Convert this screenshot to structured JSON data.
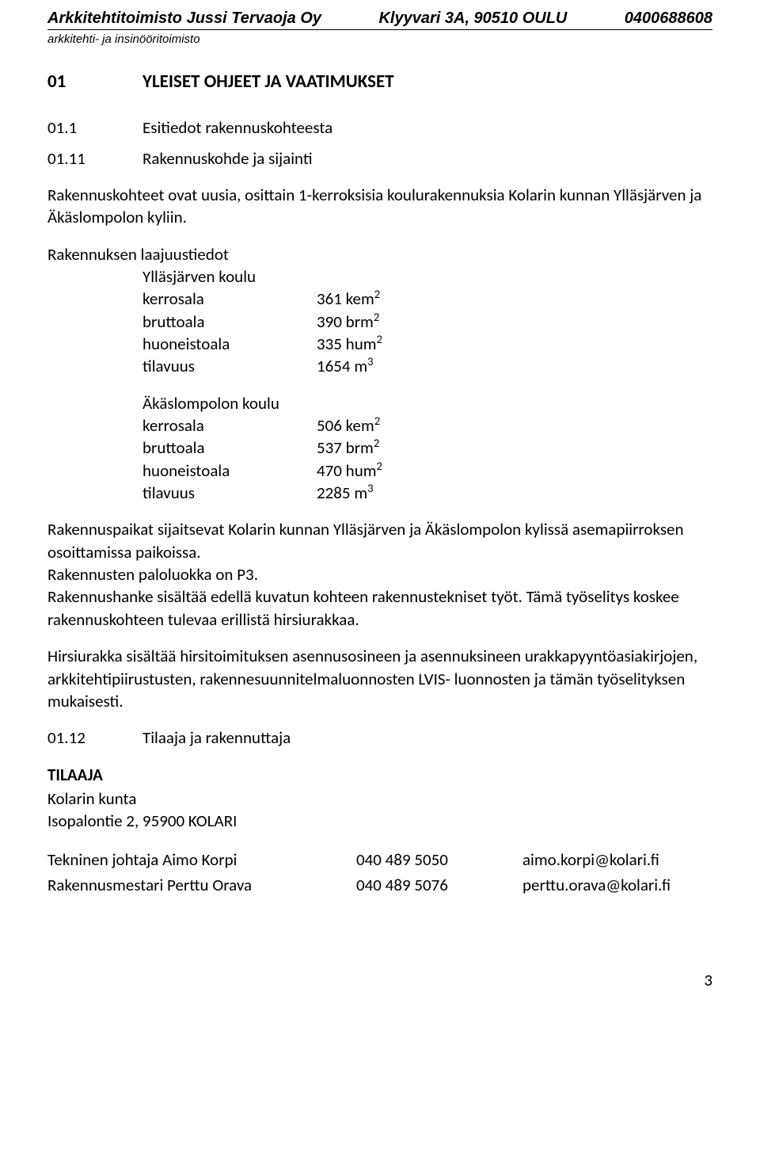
{
  "header": {
    "company": "Arkkitehtitoimisto Jussi Tervaoja Oy",
    "address": "Klyyvari 3A, 90510 OULU",
    "phone": "0400688608",
    "subtitle": "arkkitehti- ja insinööritoimisto"
  },
  "section": {
    "num": "01",
    "title": "YLEISET OHJEET JA VAATIMUKSET"
  },
  "sub1": {
    "num": "01.1",
    "title": "Esitiedot rakennuskohteesta"
  },
  "sub2": {
    "num": "01.11",
    "title": "Rakennuskohde ja sijainti"
  },
  "intro": "Rakennuskohteet ovat uusia, osittain 1-kerroksisia koulurakennuksia Kolarin kunnan Ylläsjärven ja Äkäslompolon kyliin.",
  "scope_heading": "Rakennuksen laajuustiedot",
  "school1": {
    "name": "Ylläsjärven koulu",
    "rows": [
      {
        "k": "kerrosala",
        "v": "361 kem",
        "sup": "2"
      },
      {
        "k": "bruttoala",
        "v": "390 brm",
        "sup": "2"
      },
      {
        "k": "huoneistoala",
        "v": "335 hum",
        "sup": "2"
      },
      {
        "k": "tilavuus",
        "v": "1654 m",
        "sup": "3"
      }
    ]
  },
  "school2": {
    "name": "Äkäslompolon koulu",
    "rows": [
      {
        "k": "kerrosala",
        "v": "506 kem",
        "sup": "2"
      },
      {
        "k": "bruttoala",
        "v": "537 brm",
        "sup": "2"
      },
      {
        "k": "huoneistoala",
        "v": "470 hum",
        "sup": "2"
      },
      {
        "k": "tilavuus",
        "v": " 2285 m",
        "sup": "3"
      }
    ]
  },
  "para2": "Rakennuspaikat sijaitsevat Kolarin kunnan Ylläsjärven ja Äkäslompolon kylissä asemapiirroksen osoittamissa paikoissa.",
  "para3": "Rakennusten paloluokka on P3.",
  "para4": "Rakennushanke sisältää edellä kuvatun kohteen rakennustekniset työt. Tämä työselitys koskee rakennuskohteen tulevaa erillistä hirsiurakkaa.",
  "para5": "Hirsiurakka sisältää hirsitoimituksen asennusosineen ja asennuksineen urakkapyyntöasiakirjojen, arkkitehtipiirustusten, rakennesuunnitelmaluonnosten LVIS- luonnosten ja tämän työselityksen mukaisesti.",
  "sub3": {
    "num": "01.12",
    "title": "Tilaaja ja rakennuttaja"
  },
  "client": {
    "heading": "TILAAJA",
    "name": "Kolarin kunta",
    "addr": "Isopalontie 2, 95900 KOLARI"
  },
  "contacts": [
    {
      "role": "Tekninen johtaja Aimo Korpi",
      "phone": "040 489 5050",
      "email": "aimo.korpi@kolari.fi"
    },
    {
      "role": "Rakennusmestari  Perttu Orava",
      "phone": "040 489 5076",
      "email": "perttu.orava@kolari.fi"
    }
  ],
  "page_number": "3"
}
